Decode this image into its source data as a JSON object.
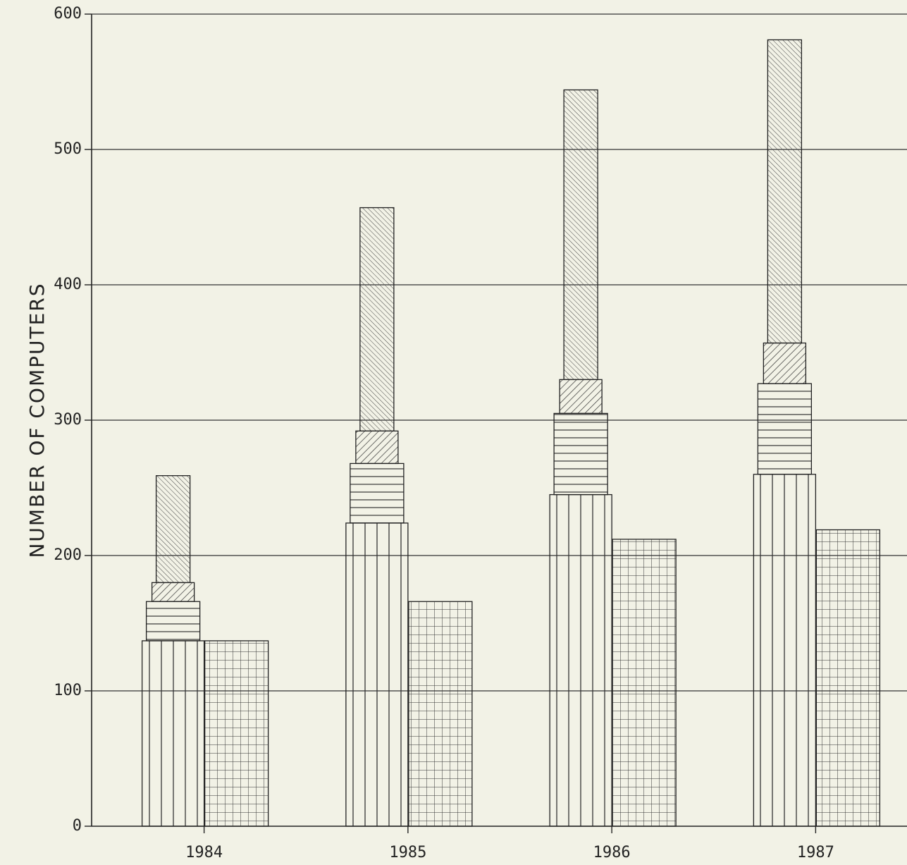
{
  "chart_data": {
    "type": "bar",
    "title": "",
    "xlabel": "",
    "ylabel": "NUMBER OF COMPUTERS",
    "ylim": [
      0,
      600
    ],
    "yticks": [
      0,
      100,
      200,
      300,
      400,
      500,
      600
    ],
    "grid": true,
    "categories": [
      "1984",
      "1985",
      "1986",
      "1987"
    ],
    "stacked_series": [
      {
        "pattern": "vertical-lines",
        "values": [
          137,
          224,
          245,
          260
        ]
      },
      {
        "pattern": "horizontal-lines",
        "values": [
          29,
          44,
          60,
          67
        ]
      },
      {
        "pattern": "hatch-forward",
        "values": [
          14,
          24,
          25,
          30
        ]
      },
      {
        "pattern": "hatch-back",
        "values": [
          79,
          165,
          214,
          224
        ]
      }
    ],
    "side_series": [
      {
        "pattern": "grid",
        "values": [
          137,
          166,
          212,
          219
        ]
      }
    ],
    "colors": {
      "background": "#f2f2e6",
      "ink": "#222222"
    }
  }
}
